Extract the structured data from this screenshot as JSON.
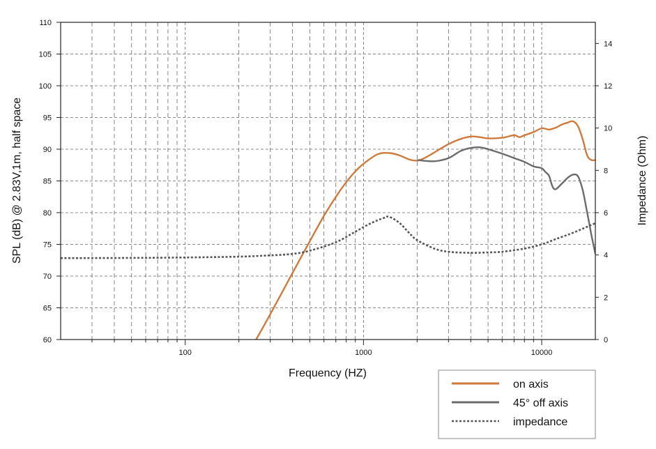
{
  "chart_data": {
    "type": "line",
    "xlabel": "Frequency (HZ)",
    "ylabel": "SPL (dB) @ 2.83V,1m, half space",
    "y2label": "Impedance (Ohm)",
    "xscale": "log",
    "xlim": [
      20,
      20000
    ],
    "ylim": [
      60,
      110
    ],
    "y2lim": [
      0,
      15
    ],
    "x_ticks": [
      100,
      1000,
      10000
    ],
    "x_tick_labels": [
      "100",
      "1000",
      "10000"
    ],
    "y_ticks": [
      60,
      65,
      70,
      75,
      80,
      85,
      90,
      95,
      100,
      105,
      110
    ],
    "y_tick_labels": [
      "60",
      "65",
      "70",
      "75",
      "80",
      "85",
      "90",
      "95",
      "100",
      "105",
      "110"
    ],
    "y2_ticks": [
      0,
      2,
      4,
      6,
      8,
      10,
      12,
      14
    ],
    "y2_tick_labels": [
      "0",
      "2",
      "4",
      "6",
      "8",
      "10",
      "12",
      "14"
    ],
    "grid": true,
    "legend_position": "bottom-right-outside",
    "series": [
      {
        "name": "on axis",
        "axis": "left",
        "color": "#cf7a3a",
        "style": "solid",
        "x": [
          250,
          300,
          400,
          500,
          600,
          700,
          800,
          900,
          1000,
          1200,
          1400,
          1600,
          1800,
          2000,
          2200,
          2500,
          3000,
          3500,
          4000,
          4500,
          5000,
          6000,
          7000,
          7500,
          8000,
          9000,
          10000,
          11000,
          12000,
          13000,
          14000,
          15000,
          16000,
          17000,
          18000,
          19000,
          20000
        ],
        "y": [
          60,
          64,
          70.5,
          75.5,
          79.5,
          82.5,
          84.8,
          86.5,
          87.7,
          89.2,
          89.4,
          89,
          88.4,
          88.2,
          88.6,
          89.5,
          90.8,
          91.6,
          92,
          91.9,
          91.7,
          91.8,
          92.2,
          91.9,
          92.2,
          92.7,
          93.3,
          93.1,
          93.4,
          93.9,
          94.2,
          94.4,
          93.6,
          91.5,
          89,
          88.3,
          88.3
        ]
      },
      {
        "name": "45° off axis",
        "axis": "left",
        "color": "#6b6b6b",
        "style": "solid",
        "x": [
          2000,
          2500,
          3000,
          3500,
          4000,
          4500,
          5000,
          6000,
          7000,
          8000,
          9000,
          10000,
          10500,
          11000,
          11500,
          12000,
          13000,
          14000,
          15000,
          16000,
          17000,
          18000,
          19000,
          20000
        ],
        "y": [
          88.3,
          88.1,
          88.6,
          89.7,
          90.2,
          90.3,
          90,
          89.3,
          88.6,
          88,
          87.3,
          87,
          86.4,
          85.8,
          84.1,
          83.7,
          84.6,
          85.5,
          86,
          85.7,
          83.5,
          80,
          76.5,
          73.5
        ]
      },
      {
        "name": "impedance",
        "axis": "right",
        "color": "#555555",
        "style": "dotted",
        "x": [
          20,
          50,
          100,
          200,
          300,
          400,
          500,
          700,
          900,
          1100,
          1300,
          1400,
          1600,
          1800,
          2000,
          2500,
          3000,
          4000,
          5000,
          6000,
          8000,
          10000,
          12000,
          15000,
          20000
        ],
        "y": [
          3.85,
          3.86,
          3.88,
          3.92,
          3.98,
          4.05,
          4.2,
          4.6,
          5.1,
          5.5,
          5.75,
          5.8,
          5.5,
          5.05,
          4.7,
          4.3,
          4.15,
          4.1,
          4.12,
          4.15,
          4.3,
          4.5,
          4.75,
          5.05,
          5.5
        ]
      }
    ]
  }
}
